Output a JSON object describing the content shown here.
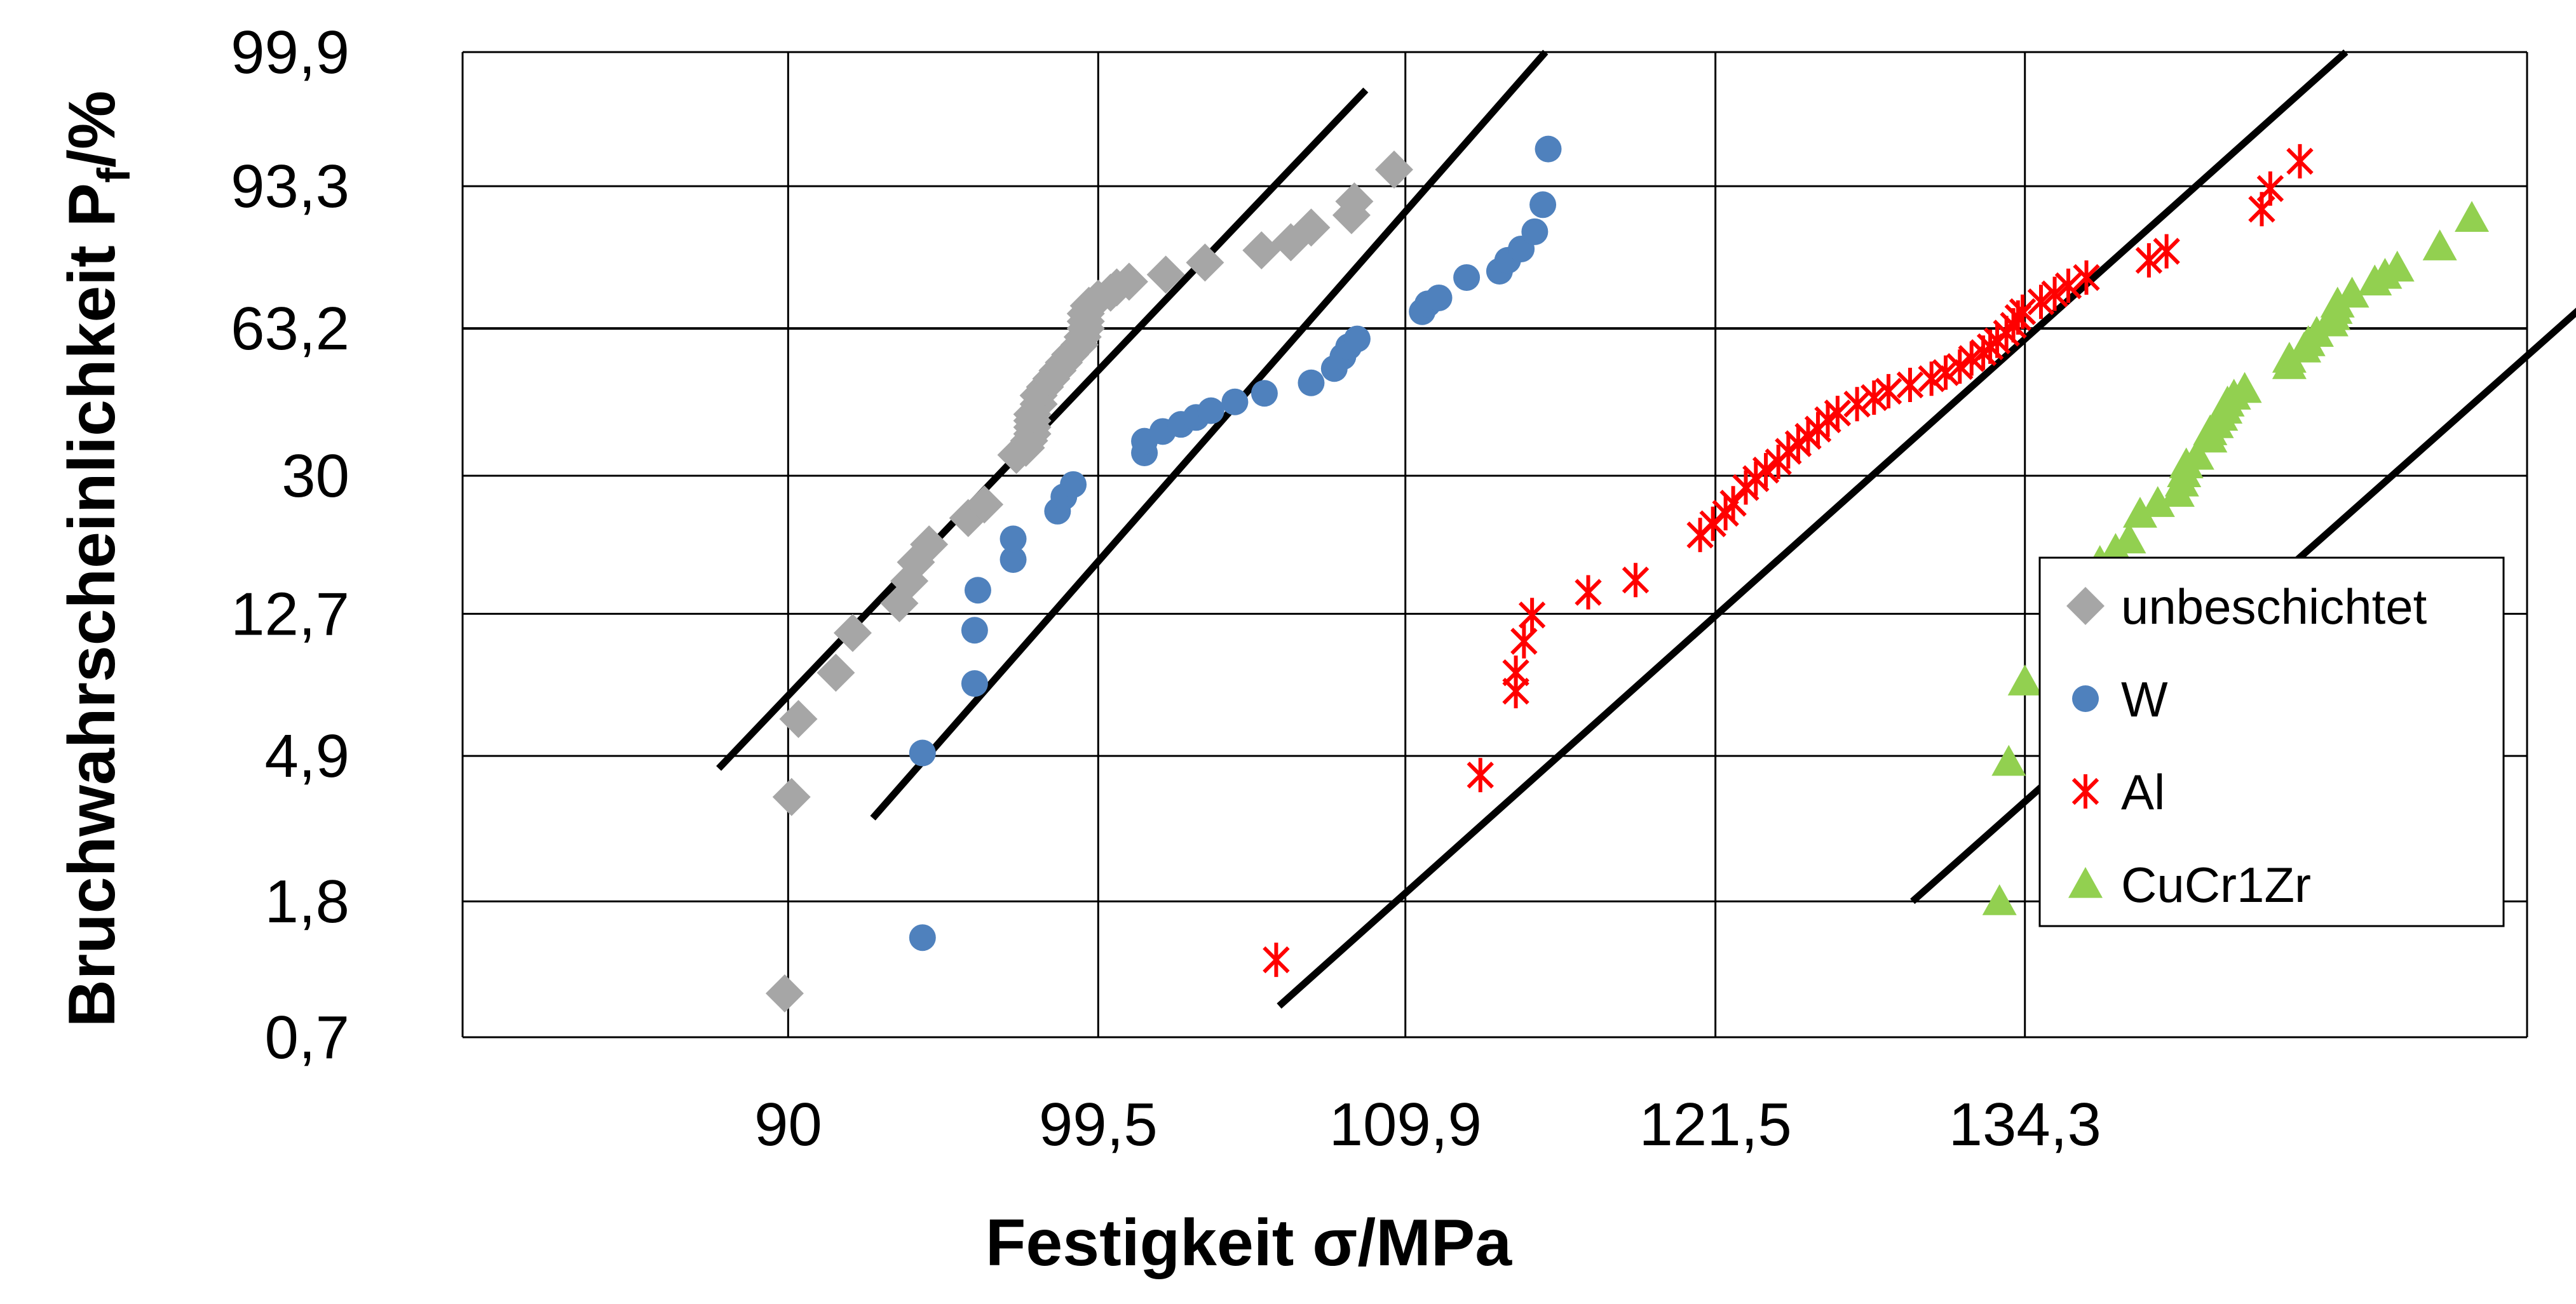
{
  "chart_data": {
    "type": "scatter",
    "title": "",
    "xlabel": "Festigkeit σ/MPa",
    "ylabel_main": "Bruchwahrscheinlichkeit  P",
    "ylabel_sub": "f",
    "ylabel_tail": "/%",
    "x_scale": "log (Weibull plot)",
    "y_scale": "Weibull probability",
    "xlim": [
      81,
      158
    ],
    "ylim": [
      0.7,
      99.9
    ],
    "x_ticks": [
      {
        "value": 90,
        "label": "90"
      },
      {
        "value": 99.5,
        "label": "99,5"
      },
      {
        "value": 109.9,
        "label": "109,9"
      },
      {
        "value": 121.5,
        "label": "121,5"
      },
      {
        "value": 134.3,
        "label": "134,3"
      }
    ],
    "y_ticks": [
      {
        "value": 99.9,
        "label": "99,9"
      },
      {
        "value": 93.3,
        "label": "93,3"
      },
      {
        "value": 63.2,
        "label": "63,2"
      },
      {
        "value": 30,
        "label": "30"
      },
      {
        "value": 12.7,
        "label": "12,7"
      },
      {
        "value": 4.9,
        "label": "4,9"
      },
      {
        "value": 1.8,
        "label": "1,8"
      },
      {
        "value": 0.7,
        "label": "0,7"
      }
    ],
    "grid": true,
    "legend_position": "right",
    "series": [
      {
        "name": "unbeschichtet",
        "marker": "diamond",
        "color": "#A6A6A6",
        "points": [
          [
            89.9,
            0.95
          ],
          [
            90.1,
            3.7
          ],
          [
            90.3,
            6.3
          ],
          [
            91.4,
            8.6
          ],
          [
            91.9,
            11.2
          ],
          [
            93.3,
            13.6
          ],
          [
            93.6,
            15.7
          ],
          [
            93.8,
            17.7
          ],
          [
            94.2,
            19.8
          ],
          [
            95.4,
            23.3
          ],
          [
            95.9,
            25.3
          ],
          [
            96.9,
            33.8
          ],
          [
            97.2,
            35.2
          ],
          [
            97.3,
            36.6
          ],
          [
            97.4,
            38.0
          ],
          [
            97.4,
            39.4
          ],
          [
            97.4,
            40.8
          ],
          [
            97.4,
            42.2
          ],
          [
            97.6,
            44.5
          ],
          [
            97.6,
            46.5
          ],
          [
            97.8,
            48.5
          ],
          [
            98.0,
            50.5
          ],
          [
            98.2,
            52.5
          ],
          [
            98.4,
            54.5
          ],
          [
            98.6,
            56.5
          ],
          [
            98.9,
            59.0
          ],
          [
            99.0,
            61.0
          ],
          [
            99.1,
            63.2
          ],
          [
            99.1,
            65.0
          ],
          [
            99.1,
            67.0
          ],
          [
            99.2,
            69.0
          ],
          [
            99.5,
            70.8
          ],
          [
            99.9,
            72.3
          ],
          [
            100.1,
            73.6
          ],
          [
            100.5,
            75.0
          ],
          [
            101.7,
            76.7
          ],
          [
            103.0,
            79.5
          ],
          [
            104.9,
            82.2
          ],
          [
            105.9,
            83.9
          ],
          [
            106.6,
            86.8
          ],
          [
            108.0,
            89.0
          ],
          [
            108.1,
            91.2
          ],
          [
            109.5,
            95.2
          ]
        ]
      },
      {
        "name": "W",
        "marker": "circle",
        "color": "#4F81BD",
        "points": [
          [
            94.0,
            1.4
          ],
          [
            94.0,
            5.0
          ],
          [
            95.6,
            8.0
          ],
          [
            95.6,
            11.4
          ],
          [
            95.7,
            14.8
          ],
          [
            96.8,
            18.0
          ],
          [
            96.8,
            20.5
          ],
          [
            98.2,
            24.3
          ],
          [
            98.4,
            26.5
          ],
          [
            98.7,
            28.5
          ],
          [
            101.0,
            34.2
          ],
          [
            101.0,
            36.5
          ],
          [
            101.6,
            38.5
          ],
          [
            102.2,
            40.0
          ],
          [
            102.7,
            41.5
          ],
          [
            103.2,
            43.0
          ],
          [
            104.0,
            45.0
          ],
          [
            105.0,
            47.0
          ],
          [
            106.6,
            49.5
          ],
          [
            107.4,
            53.0
          ],
          [
            107.7,
            56.0
          ],
          [
            107.9,
            58.5
          ],
          [
            108.2,
            60.5
          ],
          [
            110.5,
            67.5
          ],
          [
            110.7,
            69.5
          ],
          [
            111.1,
            71.0
          ],
          [
            112.1,
            76.0
          ],
          [
            113.3,
            77.5
          ],
          [
            113.6,
            80.0
          ],
          [
            114.1,
            82.5
          ],
          [
            114.6,
            86.0
          ],
          [
            114.9,
            90.7
          ],
          [
            115.1,
            97.0
          ]
        ]
      },
      {
        "name": "Al",
        "marker": "asterisk",
        "color": "#FF0000",
        "points": [
          [
            105.4,
            1.2
          ],
          [
            112.6,
            4.3
          ],
          [
            113.9,
            7.6
          ],
          [
            113.9,
            8.6
          ],
          [
            114.2,
            10.6
          ],
          [
            114.5,
            12.6
          ],
          [
            116.6,
            14.6
          ],
          [
            118.4,
            15.8
          ],
          [
            120.9,
            21.0
          ],
          [
            121.4,
            22.5
          ],
          [
            121.9,
            24.0
          ],
          [
            122.2,
            25.5
          ],
          [
            122.7,
            28.0
          ],
          [
            123.1,
            29.5
          ],
          [
            123.5,
            31.0
          ],
          [
            124.0,
            32.5
          ],
          [
            124.4,
            34.5
          ],
          [
            124.8,
            36.0
          ],
          [
            125.2,
            37.5
          ],
          [
            125.6,
            39.0
          ],
          [
            126.0,
            41.0
          ],
          [
            126.4,
            42.5
          ],
          [
            127.2,
            44.5
          ],
          [
            127.9,
            46.0
          ],
          [
            128.5,
            47.5
          ],
          [
            129.4,
            49.0
          ],
          [
            130.3,
            50.5
          ],
          [
            130.9,
            52.0
          ],
          [
            131.5,
            53.5
          ],
          [
            132.0,
            55.5
          ],
          [
            132.5,
            57.0
          ],
          [
            132.8,
            58.5
          ],
          [
            133.1,
            60.0
          ],
          [
            133.5,
            62.0
          ],
          [
            133.8,
            64.0
          ],
          [
            134.0,
            66.0
          ],
          [
            134.2,
            67.5
          ],
          [
            135.0,
            70.0
          ],
          [
            135.6,
            72.0
          ],
          [
            136.2,
            74.0
          ],
          [
            137.0,
            76.0
          ],
          [
            139.8,
            80.0
          ],
          [
            140.6,
            82.0
          ],
          [
            145.0,
            90.0
          ],
          [
            145.4,
            93.0
          ],
          [
            146.8,
            96.0
          ]
        ]
      },
      {
        "name": "CuCr1Zr",
        "marker": "triangle",
        "color": "#92D050",
        "points": [
          [
            133.2,
            1.8
          ],
          [
            133.6,
            4.7
          ],
          [
            134.3,
            8.1
          ],
          [
            135.9,
            11.6
          ],
          [
            137.6,
            17.7
          ],
          [
            138.3,
            19.1
          ],
          [
            138.9,
            20.4
          ],
          [
            139.4,
            23.9
          ],
          [
            140.2,
            25.5
          ],
          [
            141.1,
            27.1
          ],
          [
            141.3,
            28.8
          ],
          [
            141.4,
            30.4
          ],
          [
            141.5,
            32.0
          ],
          [
            142.0,
            33.6
          ],
          [
            142.6,
            37.0
          ],
          [
            142.6,
            38.5
          ],
          [
            142.9,
            40.0
          ],
          [
            143.1,
            41.6
          ],
          [
            143.3,
            43.2
          ],
          [
            143.4,
            44.8
          ],
          [
            143.7,
            46.4
          ],
          [
            144.2,
            48.0
          ],
          [
            146.3,
            53.8
          ],
          [
            146.3,
            55.4
          ],
          [
            147.0,
            58.0
          ],
          [
            147.2,
            59.6
          ],
          [
            147.6,
            62.0
          ],
          [
            148.3,
            64.7
          ],
          [
            148.4,
            66.3
          ],
          [
            148.5,
            67.9
          ],
          [
            148.6,
            69.5
          ],
          [
            149.3,
            72.0
          ],
          [
            150.4,
            75.0
          ],
          [
            150.9,
            76.6
          ],
          [
            151.5,
            78.3
          ],
          [
            153.6,
            83.0
          ],
          [
            155.2,
            88.5
          ]
        ]
      }
    ],
    "fit_lines": [
      {
        "series": "unbeschichtet",
        "from": [
          88.0,
          4.5
        ],
        "to": [
          108.5,
          99.5
        ]
      },
      {
        "series": "W",
        "from": [
          92.5,
          3.2
        ],
        "to": [
          115.0,
          99.9
        ]
      },
      {
        "series": "Al",
        "from": [
          105.5,
          0.87
        ],
        "to": [
          149.0,
          99.9
        ]
      },
      {
        "series": "CuCr1Zr",
        "from": [
          129.5,
          1.8
        ],
        "to": [
          176.5,
          99.9
        ]
      }
    ]
  }
}
